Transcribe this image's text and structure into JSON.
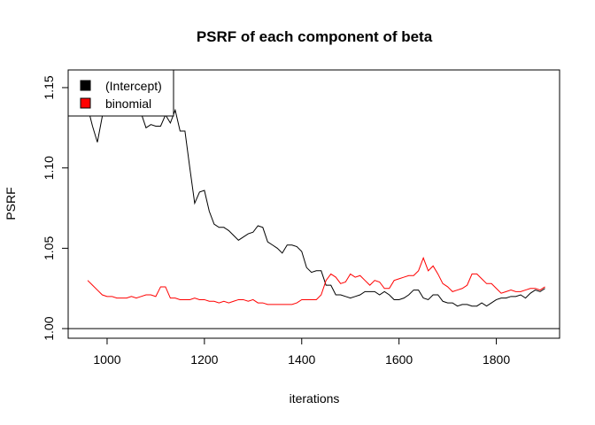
{
  "chart_data": {
    "type": "line",
    "title": "PSRF of each component of beta",
    "xlabel": "iterations",
    "ylabel": "PSRF",
    "xlim": [
      920,
      1930
    ],
    "ylim": [
      0.994,
      1.161
    ],
    "xticks": [
      1000,
      1200,
      1400,
      1600,
      1800
    ],
    "yticks": [
      1.0,
      1.05,
      1.1,
      1.15
    ],
    "xtick_labels": [
      "1000",
      "1200",
      "1400",
      "1600",
      "1800"
    ],
    "ytick_labels": [
      "1.00",
      "1.05",
      "1.10",
      "1.15"
    ],
    "reference_line": 1.0,
    "grid": false,
    "legend_position": "top-left",
    "series": [
      {
        "name": "(Intercept)",
        "color": "#000000",
        "x": [
          960,
          970,
          980,
          990,
          1000,
          1010,
          1020,
          1030,
          1040,
          1050,
          1060,
          1070,
          1080,
          1090,
          1100,
          1110,
          1120,
          1130,
          1140,
          1150,
          1160,
          1170,
          1180,
          1190,
          1200,
          1210,
          1220,
          1230,
          1240,
          1250,
          1260,
          1270,
          1280,
          1290,
          1300,
          1310,
          1320,
          1330,
          1340,
          1350,
          1360,
          1370,
          1380,
          1390,
          1400,
          1410,
          1420,
          1430,
          1440,
          1450,
          1460,
          1470,
          1480,
          1490,
          1500,
          1510,
          1520,
          1530,
          1540,
          1550,
          1560,
          1570,
          1580,
          1590,
          1600,
          1610,
          1620,
          1630,
          1640,
          1650,
          1660,
          1670,
          1680,
          1690,
          1700,
          1710,
          1720,
          1730,
          1740,
          1750,
          1760,
          1770,
          1780,
          1790,
          1800,
          1810,
          1820,
          1830,
          1840,
          1850,
          1860,
          1870,
          1880,
          1890,
          1900
        ],
        "values": [
          1.138,
          1.126,
          1.116,
          1.132,
          1.14,
          1.141,
          1.141,
          1.138,
          1.137,
          1.14,
          1.141,
          1.134,
          1.125,
          1.127,
          1.126,
          1.126,
          1.133,
          1.128,
          1.136,
          1.123,
          1.123,
          1.1,
          1.078,
          1.085,
          1.086,
          1.073,
          1.065,
          1.063,
          1.063,
          1.061,
          1.058,
          1.055,
          1.057,
          1.059,
          1.06,
          1.064,
          1.063,
          1.054,
          1.052,
          1.05,
          1.047,
          1.052,
          1.052,
          1.051,
          1.048,
          1.038,
          1.035,
          1.036,
          1.036,
          1.027,
          1.027,
          1.021,
          1.021,
          1.02,
          1.019,
          1.02,
          1.021,
          1.023,
          1.023,
          1.023,
          1.021,
          1.023,
          1.021,
          1.018,
          1.018,
          1.019,
          1.021,
          1.024,
          1.024,
          1.019,
          1.018,
          1.021,
          1.021,
          1.017,
          1.016,
          1.016,
          1.014,
          1.015,
          1.015,
          1.014,
          1.014,
          1.016,
          1.014,
          1.016,
          1.018,
          1.019,
          1.019,
          1.02,
          1.02,
          1.021,
          1.019,
          1.022,
          1.024,
          1.023,
          1.025
        ]
      },
      {
        "name": "binomial",
        "color": "#ff0000",
        "x": [
          960,
          970,
          980,
          990,
          1000,
          1010,
          1020,
          1030,
          1040,
          1050,
          1060,
          1070,
          1080,
          1090,
          1100,
          1110,
          1120,
          1130,
          1140,
          1150,
          1160,
          1170,
          1180,
          1190,
          1200,
          1210,
          1220,
          1230,
          1240,
          1250,
          1260,
          1270,
          1280,
          1290,
          1300,
          1310,
          1320,
          1330,
          1340,
          1350,
          1360,
          1370,
          1380,
          1390,
          1400,
          1410,
          1420,
          1430,
          1440,
          1450,
          1460,
          1470,
          1480,
          1490,
          1500,
          1510,
          1520,
          1530,
          1540,
          1550,
          1560,
          1570,
          1580,
          1590,
          1600,
          1610,
          1620,
          1630,
          1640,
          1650,
          1660,
          1670,
          1680,
          1690,
          1700,
          1710,
          1720,
          1730,
          1740,
          1750,
          1760,
          1770,
          1780,
          1790,
          1800,
          1810,
          1820,
          1830,
          1840,
          1850,
          1860,
          1870,
          1880,
          1890,
          1900
        ],
        "values": [
          1.03,
          1.027,
          1.024,
          1.021,
          1.02,
          1.02,
          1.019,
          1.019,
          1.019,
          1.02,
          1.019,
          1.02,
          1.021,
          1.021,
          1.02,
          1.026,
          1.026,
          1.019,
          1.019,
          1.018,
          1.018,
          1.018,
          1.019,
          1.018,
          1.018,
          1.017,
          1.017,
          1.016,
          1.017,
          1.016,
          1.017,
          1.018,
          1.018,
          1.017,
          1.018,
          1.016,
          1.016,
          1.015,
          1.015,
          1.015,
          1.015,
          1.015,
          1.015,
          1.016,
          1.018,
          1.018,
          1.018,
          1.018,
          1.021,
          1.03,
          1.034,
          1.032,
          1.028,
          1.029,
          1.034,
          1.032,
          1.033,
          1.03,
          1.027,
          1.03,
          1.029,
          1.025,
          1.025,
          1.03,
          1.031,
          1.032,
          1.033,
          1.033,
          1.036,
          1.044,
          1.036,
          1.039,
          1.034,
          1.028,
          1.026,
          1.023,
          1.024,
          1.025,
          1.027,
          1.034,
          1.034,
          1.031,
          1.028,
          1.028,
          1.025,
          1.022,
          1.023,
          1.024,
          1.023,
          1.023,
          1.024,
          1.025,
          1.025,
          1.024,
          1.026
        ]
      }
    ]
  }
}
